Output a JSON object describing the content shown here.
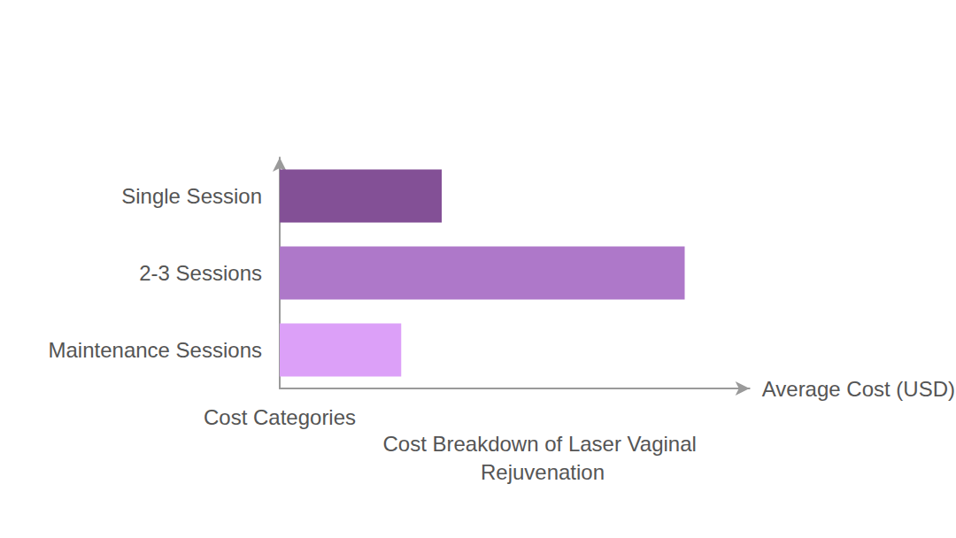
{
  "chart_data": {
    "type": "bar",
    "orientation": "horizontal",
    "title": "Cost Breakdown of Laser Vaginal Rejuvenation",
    "x_label": "Average Cost (USD)",
    "y_label": "Cost Categories",
    "categories": [
      "Single Session",
      "2-3 Sessions",
      "Maintenance Sessions"
    ],
    "values": [
      2000,
      5000,
      1500
    ],
    "colors": [
      "#835096",
      "#ae78c9",
      "#dca0f8"
    ],
    "xlim": [
      0,
      5800
    ],
    "grid": false,
    "tick_labels": false
  }
}
